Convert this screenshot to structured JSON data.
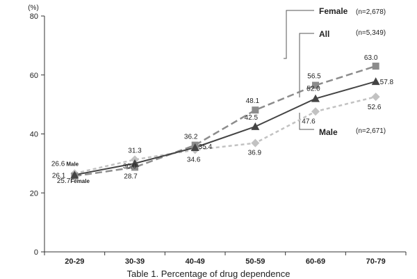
{
  "chart_data": {
    "type": "line",
    "y_unit_label": "(%)",
    "caption": "Table 1. Percentage of drug dependence",
    "ylim": [
      0,
      80
    ],
    "yticks": [
      0,
      20,
      40,
      60,
      80
    ],
    "categories": [
      "20-29",
      "30-39",
      "40-49",
      "50-59",
      "60-69",
      "70-79"
    ],
    "series": [
      {
        "name": "Female",
        "n_label": "(n=2,678)",
        "values": [
          25.7,
          28.7,
          36.2,
          48.1,
          56.5,
          63.0
        ],
        "labels": [
          "25.7",
          "28.7",
          "36.2",
          "48.1",
          "56.5",
          "63.0"
        ],
        "color": "#8c8c8c",
        "line_style": "long-dash",
        "marker": "square"
      },
      {
        "name": "All",
        "n_label": "(n=5,349)",
        "values": [
          26.1,
          30.0,
          35.4,
          42.5,
          52.0,
          57.8
        ],
        "labels": [
          "26.1",
          "30.0",
          "35.4",
          "42.5",
          "52.0",
          "57.8"
        ],
        "color": "#444444",
        "line_style": "solid",
        "marker": "triangle"
      },
      {
        "name": "Male",
        "n_label": "(n=2,671)",
        "values": [
          26.6,
          31.3,
          34.6,
          36.9,
          47.6,
          52.6
        ],
        "labels": [
          "26.6",
          "31.3",
          "34.6",
          "36.9",
          "47.6",
          "52.6"
        ],
        "color": "#c2c2c2",
        "line_style": "short-dash",
        "marker": "diamond"
      }
    ],
    "inline_labels": {
      "male": "Male",
      "female": "Female"
    },
    "grid": false,
    "legend": "callouts-right"
  }
}
